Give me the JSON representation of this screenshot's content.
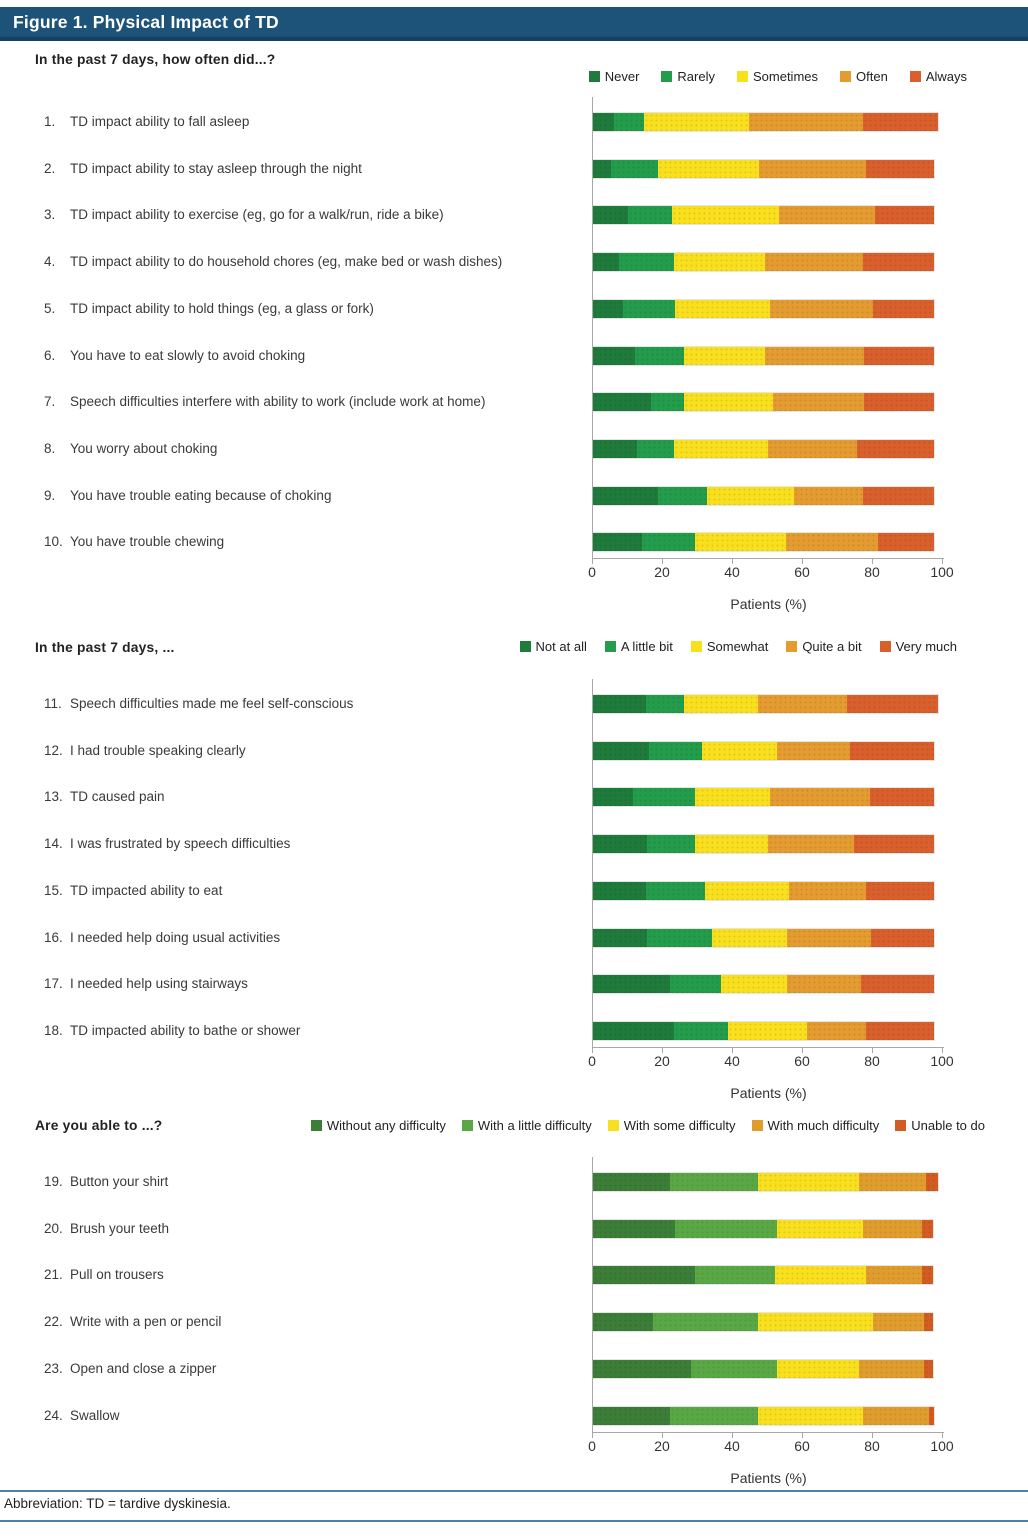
{
  "figure": {
    "title": "Figure 1. Physical Impact of TD",
    "footer": "Abbreviation: TD = tardive dyskinesia.",
    "colors": {
      "header_bg": "#1d5379",
      "header_border": "#16405f",
      "rule_line": "#4d7fa9",
      "axis_line": "#a8a8a8",
      "text": "#333333"
    }
  },
  "chart_data": [
    {
      "type": "bar",
      "stacked": true,
      "orientation": "horizontal",
      "title": "In the past 7 days, how often did...?",
      "xlabel": "Patients (%)",
      "xlim": [
        0,
        100
      ],
      "xticks": [
        0,
        20,
        40,
        60,
        80,
        100
      ],
      "legend_position": "top-right",
      "item_numbers": [
        "1.",
        "2.",
        "3.",
        "4.",
        "5.",
        "6.",
        "7.",
        "8.",
        "9.",
        "10."
      ],
      "categories": [
        "TD impact ability to fall asleep",
        "TD impact ability to stay asleep through the night",
        "TD impact ability to exercise (eg, go for a walk/run, ride a bike)",
        "TD impact ability to do household chores (eg, make bed or wash dishes)",
        "TD impact ability to hold things (eg, a glass or fork)",
        "You have to eat slowly to avoid choking",
        "Speech difficulties interfere with ability to work (include work at home)",
        "You worry about choking",
        "You have trouble eating because of choking",
        "You have trouble chewing"
      ],
      "series": [
        {
          "name": "Never",
          "color": "#1e7b3c",
          "values": [
            6,
            5,
            10,
            7.5,
            8.5,
            12,
            16.5,
            12.5,
            18.5,
            14
          ]
        },
        {
          "name": "Rarely",
          "color": "#239c4b",
          "values": [
            8.5,
            13.5,
            12.5,
            15.5,
            15,
            14,
            9.5,
            10.5,
            14,
            15
          ]
        },
        {
          "name": "Sometimes",
          "color": "#f8e01f",
          "values": [
            30,
            29,
            30.5,
            26,
            27,
            23,
            25.5,
            27,
            25,
            26
          ]
        },
        {
          "name": "Often",
          "color": "#e49b30",
          "values": [
            32.5,
            30.5,
            27.5,
            28,
            29.5,
            28.5,
            26,
            25.5,
            19.5,
            26.5
          ]
        },
        {
          "name": "Always",
          "color": "#d9602c",
          "values": [
            21.5,
            19.5,
            17,
            20.5,
            17.5,
            20,
            20,
            22,
            20.5,
            16
          ]
        }
      ]
    },
    {
      "type": "bar",
      "stacked": true,
      "orientation": "horizontal",
      "title": "In the past 7 days, ...",
      "xlabel": "Patients (%)",
      "xlim": [
        0,
        100
      ],
      "xticks": [
        0,
        20,
        40,
        60,
        80,
        100
      ],
      "legend_position": "top-right",
      "item_numbers": [
        "11.",
        "12.",
        "13.",
        "14.",
        "15.",
        "16.",
        "17.",
        "18."
      ],
      "categories": [
        "Speech difficulties made me feel self-conscious",
        "I had trouble speaking clearly",
        "TD caused pain",
        "I was frustrated by speech difficulties",
        "TD impacted ability to eat",
        "I needed help doing usual activities",
        "I needed help using stairways",
        "TD impacted ability to bathe or shower"
      ],
      "series": [
        {
          "name": "Not at all",
          "color": "#1e7b3c",
          "values": [
            15,
            16,
            11.5,
            15.5,
            15,
            15.5,
            22,
            23
          ]
        },
        {
          "name": "A little bit",
          "color": "#239c4b",
          "values": [
            11,
            15,
            17.5,
            13.5,
            17,
            18.5,
            14.5,
            15.5
          ]
        },
        {
          "name": "Somewhat",
          "color": "#f8e01f",
          "values": [
            21,
            21.5,
            21.5,
            21,
            24,
            21.5,
            19,
            22.5
          ]
        },
        {
          "name": "Quite a bit",
          "color": "#e49b30",
          "values": [
            25.5,
            21,
            28.5,
            24.5,
            22,
            24,
            21,
            17
          ]
        },
        {
          "name": "Very much",
          "color": "#d9602c",
          "values": [
            26,
            24,
            18.5,
            23,
            19.5,
            18,
            21,
            19.5
          ]
        }
      ]
    },
    {
      "type": "bar",
      "stacked": true,
      "orientation": "horizontal",
      "title": "Are you able to ...?",
      "xlabel": "Patients (%)",
      "xlim": [
        0,
        100
      ],
      "xticks": [
        0,
        20,
        40,
        60,
        80,
        100
      ],
      "legend_position": "top-right",
      "item_numbers": [
        "19.",
        "20.",
        "21.",
        "22.",
        "23.",
        "24."
      ],
      "categories": [
        "Button your shirt",
        "Brush your teeth",
        "Pull on trousers",
        "Write with a pen or pencil",
        "Open and close a zipper",
        "Swallow"
      ],
      "series": [
        {
          "name": "Without any difficulty",
          "color": "#3c7d38",
          "values": [
            22,
            23.5,
            29,
            17,
            28,
            22
          ]
        },
        {
          "name": "With a little difficulty",
          "color": "#5aa845",
          "values": [
            25,
            29,
            23,
            30,
            24.5,
            25
          ]
        },
        {
          "name": "With some difficulty",
          "color": "#f8e01f",
          "values": [
            29,
            24.5,
            26,
            33,
            23.5,
            30
          ]
        },
        {
          "name": "With much difficulty",
          "color": "#e09d2e",
          "values": [
            19,
            17,
            16,
            14.5,
            18.5,
            19
          ]
        },
        {
          "name": "Unable to do",
          "color": "#d25c22",
          "values": [
            3.5,
            3,
            3,
            2.5,
            2.5,
            1.5
          ]
        }
      ]
    }
  ]
}
